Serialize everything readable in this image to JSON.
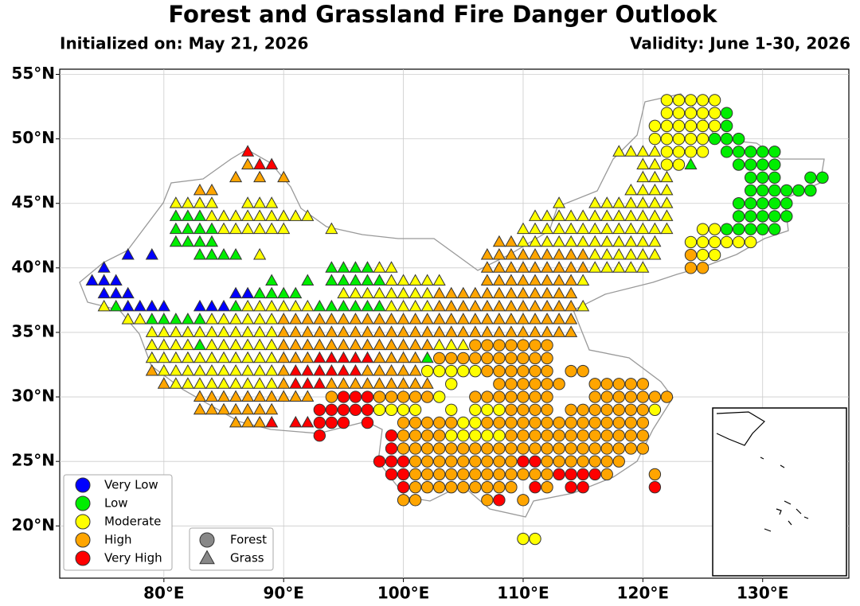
{
  "chart_data": {
    "type": "map-markers",
    "title": "Forest and Grassland Fire Danger Outlook",
    "initialized": "Initialized on: May 21, 2026",
    "validity": "Validity: June 1-30, 2026",
    "xlim": [
      71.3,
      137.2
    ],
    "ylim": [
      15.95,
      55.4
    ],
    "grid": true,
    "xticks": [
      {
        "value": 80,
        "label": "80°E"
      },
      {
        "value": 90,
        "label": "90°E"
      },
      {
        "value": 100,
        "label": "100°E"
      },
      {
        "value": 110,
        "label": "110°E"
      },
      {
        "value": 120,
        "label": "120°E"
      },
      {
        "value": 130,
        "label": "130°E"
      }
    ],
    "yticks": [
      {
        "value": 20,
        "label": "20°N"
      },
      {
        "value": 25,
        "label": "25°N"
      },
      {
        "value": 30,
        "label": "30°N"
      },
      {
        "value": 35,
        "label": "35°N"
      },
      {
        "value": 40,
        "label": "40°N"
      },
      {
        "value": 45,
        "label": "45°N"
      },
      {
        "value": 50,
        "label": "50°N"
      },
      {
        "value": 55,
        "label": "55°N"
      }
    ],
    "levels": [
      {
        "name": "Very Low",
        "color": "#0000ff"
      },
      {
        "name": "Low",
        "color": "#00ee00"
      },
      {
        "name": "Moderate",
        "color": "#ffff00"
      },
      {
        "name": "High",
        "color": "#ffa500"
      },
      {
        "name": "Very High",
        "color": "#ff0000"
      }
    ],
    "shapes": [
      {
        "name": "Forest",
        "marker": "circle"
      },
      {
        "name": "Grass",
        "marker": "triangle"
      }
    ],
    "rows": [
      {
        "lat": 53,
        "runs": [
          [
            122,
            126,
            2,
            0
          ]
        ]
      },
      {
        "lat": 52,
        "runs": [
          [
            122,
            126,
            2,
            0
          ],
          [
            127,
            127,
            1,
            0
          ]
        ]
      },
      {
        "lat": 51,
        "runs": [
          [
            121,
            126,
            2,
            0
          ],
          [
            127,
            127,
            1,
            0
          ]
        ]
      },
      {
        "lat": 50,
        "runs": [
          [
            121,
            125,
            2,
            0
          ],
          [
            126,
            128,
            1,
            0
          ]
        ]
      },
      {
        "lat": 49,
        "runs": [
          [
            87,
            87,
            4,
            1
          ],
          [
            118,
            121,
            2,
            1
          ],
          [
            122,
            125,
            2,
            0
          ],
          [
            127,
            131,
            1,
            0
          ]
        ]
      },
      {
        "lat": 48,
        "runs": [
          [
            87,
            87,
            3,
            1
          ],
          [
            88,
            89,
            4,
            1
          ],
          [
            120,
            121,
            2,
            1
          ],
          [
            122,
            123,
            2,
            0
          ],
          [
            124,
            124,
            1,
            1
          ],
          [
            128,
            131,
            1,
            0
          ]
        ]
      },
      {
        "lat": 47,
        "runs": [
          [
            86,
            86,
            3,
            1
          ],
          [
            88,
            88,
            3,
            1
          ],
          [
            90,
            90,
            3,
            1
          ],
          [
            120,
            122,
            2,
            1
          ],
          [
            129,
            131,
            1,
            0
          ],
          [
            134,
            135,
            1,
            0
          ]
        ]
      },
      {
        "lat": 46,
        "runs": [
          [
            83,
            84,
            3,
            1
          ],
          [
            119,
            122,
            2,
            1
          ],
          [
            129,
            134,
            1,
            0
          ]
        ]
      },
      {
        "lat": 45,
        "runs": [
          [
            81,
            84,
            2,
            1
          ],
          [
            87,
            89,
            2,
            1
          ],
          [
            113,
            113,
            2,
            1
          ],
          [
            116,
            122,
            2,
            1
          ],
          [
            128,
            132,
            1,
            0
          ]
        ]
      },
      {
        "lat": 44,
        "runs": [
          [
            81,
            83,
            1,
            1
          ],
          [
            84,
            92,
            2,
            1
          ],
          [
            111,
            122,
            2,
            1
          ],
          [
            128,
            132,
            1,
            0
          ]
        ]
      },
      {
        "lat": 43,
        "runs": [
          [
            81,
            84,
            1,
            1
          ],
          [
            85,
            90,
            2,
            1
          ],
          [
            94,
            94,
            2,
            1
          ],
          [
            110,
            122,
            2,
            1
          ],
          [
            125,
            126,
            2,
            0
          ],
          [
            127,
            131,
            1,
            0
          ]
        ]
      },
      {
        "lat": 42,
        "runs": [
          [
            81,
            84,
            1,
            1
          ],
          [
            108,
            109,
            3,
            1
          ],
          [
            110,
            121,
            2,
            1
          ],
          [
            124,
            129,
            2,
            0
          ]
        ]
      },
      {
        "lat": 41,
        "runs": [
          [
            77,
            77,
            0,
            1
          ],
          [
            79,
            79,
            0,
            1
          ],
          [
            83,
            86,
            1,
            1
          ],
          [
            88,
            88,
            2,
            1
          ],
          [
            107,
            115,
            3,
            1
          ],
          [
            116,
            121,
            2,
            1
          ],
          [
            124,
            124,
            3,
            0
          ],
          [
            125,
            126,
            2,
            0
          ]
        ]
      },
      {
        "lat": 40,
        "runs": [
          [
            75,
            75,
            0,
            1
          ],
          [
            94,
            97,
            1,
            1
          ],
          [
            98,
            99,
            2,
            1
          ],
          [
            107,
            115,
            3,
            1
          ],
          [
            116,
            120,
            2,
            1
          ],
          [
            124,
            125,
            3,
            0
          ]
        ]
      },
      {
        "lat": 39,
        "runs": [
          [
            74,
            76,
            0,
            1
          ],
          [
            89,
            89,
            1,
            1
          ],
          [
            92,
            92,
            1,
            1
          ],
          [
            94,
            98,
            1,
            1
          ],
          [
            99,
            103,
            2,
            1
          ],
          [
            107,
            114,
            3,
            1
          ],
          [
            115,
            115,
            2,
            1
          ]
        ]
      },
      {
        "lat": 38,
        "runs": [
          [
            75,
            77,
            0,
            1
          ],
          [
            86,
            87,
            0,
            1
          ],
          [
            88,
            91,
            1,
            1
          ],
          [
            95,
            102,
            2,
            1
          ],
          [
            103,
            114,
            3,
            1
          ]
        ]
      },
      {
        "lat": 37,
        "runs": [
          [
            75,
            75,
            2,
            1
          ],
          [
            76,
            76,
            1,
            1
          ],
          [
            77,
            80,
            0,
            1
          ],
          [
            83,
            85,
            0,
            1
          ],
          [
            86,
            86,
            1,
            1
          ],
          [
            87,
            92,
            2,
            1
          ],
          [
            93,
            98,
            1,
            1
          ],
          [
            99,
            102,
            2,
            1
          ],
          [
            103,
            114,
            3,
            1
          ],
          [
            115,
            115,
            2,
            1
          ]
        ]
      },
      {
        "lat": 36,
        "runs": [
          [
            77,
            78,
            2,
            1
          ],
          [
            79,
            83,
            1,
            1
          ],
          [
            84,
            89,
            2,
            1
          ],
          [
            90,
            114,
            3,
            1
          ]
        ]
      },
      {
        "lat": 35,
        "runs": [
          [
            79,
            89,
            2,
            1
          ],
          [
            90,
            114,
            3,
            1
          ]
        ]
      },
      {
        "lat": 34,
        "runs": [
          [
            79,
            82,
            2,
            1
          ],
          [
            83,
            83,
            1,
            1
          ],
          [
            84,
            89,
            2,
            1
          ],
          [
            90,
            102,
            3,
            1
          ],
          [
            103,
            105,
            2,
            1
          ],
          [
            106,
            112,
            3,
            0
          ]
        ]
      },
      {
        "lat": 33,
        "runs": [
          [
            79,
            89,
            2,
            1
          ],
          [
            90,
            92,
            3,
            1
          ],
          [
            93,
            97,
            4,
            1
          ],
          [
            98,
            101,
            3,
            1
          ],
          [
            102,
            102,
            1,
            1
          ],
          [
            103,
            112,
            3,
            0
          ]
        ]
      },
      {
        "lat": 32,
        "runs": [
          [
            79,
            79,
            3,
            1
          ],
          [
            80,
            89,
            2,
            1
          ],
          [
            90,
            90,
            3,
            1
          ],
          [
            91,
            96,
            4,
            1
          ],
          [
            97,
            101,
            3,
            1
          ],
          [
            102,
            106,
            2,
            0
          ],
          [
            107,
            112,
            3,
            0
          ],
          [
            114,
            115,
            3,
            0
          ]
        ]
      },
      {
        "lat": 31,
        "runs": [
          [
            80,
            80,
            3,
            1
          ],
          [
            81,
            89,
            2,
            1
          ],
          [
            90,
            90,
            3,
            1
          ],
          [
            91,
            93,
            4,
            1
          ],
          [
            94,
            102,
            3,
            1
          ],
          [
            104,
            104,
            2,
            0
          ],
          [
            108,
            113,
            3,
            0
          ],
          [
            116,
            120,
            3,
            0
          ]
        ]
      },
      {
        "lat": 30,
        "runs": [
          [
            83,
            92,
            3,
            1
          ],
          [
            94,
            94,
            3,
            0
          ],
          [
            95,
            97,
            4,
            0
          ],
          [
            98,
            102,
            3,
            0
          ],
          [
            103,
            103,
            2,
            0
          ],
          [
            106,
            112,
            3,
            0
          ],
          [
            116,
            122,
            3,
            0
          ]
        ]
      },
      {
        "lat": 29,
        "runs": [
          [
            83,
            89,
            3,
            1
          ],
          [
            93,
            97,
            4,
            0
          ],
          [
            98,
            101,
            2,
            0
          ],
          [
            104,
            104,
            2,
            0
          ],
          [
            106,
            108,
            2,
            0
          ],
          [
            109,
            112,
            3,
            0
          ],
          [
            114,
            120,
            3,
            0
          ],
          [
            121,
            121,
            2,
            0
          ]
        ]
      },
      {
        "lat": 28,
        "runs": [
          [
            86,
            88,
            3,
            1
          ],
          [
            89,
            89,
            4,
            1
          ],
          [
            91,
            92,
            4,
            1
          ],
          [
            93,
            95,
            4,
            0
          ],
          [
            97,
            97,
            4,
            0
          ],
          [
            100,
            104,
            3,
            0
          ],
          [
            105,
            106,
            2,
            0
          ],
          [
            107,
            120,
            3,
            0
          ]
        ]
      },
      {
        "lat": 27,
        "runs": [
          [
            93,
            93,
            4,
            0
          ],
          [
            99,
            99,
            4,
            0
          ],
          [
            100,
            103,
            3,
            0
          ],
          [
            104,
            108,
            2,
            0
          ],
          [
            109,
            120,
            3,
            0
          ]
        ]
      },
      {
        "lat": 26,
        "runs": [
          [
            99,
            99,
            4,
            0
          ],
          [
            100,
            120,
            3,
            0
          ]
        ]
      },
      {
        "lat": 25,
        "runs": [
          [
            98,
            100,
            4,
            0
          ],
          [
            101,
            109,
            3,
            0
          ],
          [
            110,
            111,
            4,
            0
          ],
          [
            112,
            118,
            3,
            0
          ]
        ]
      },
      {
        "lat": 24,
        "runs": [
          [
            99,
            100,
            4,
            0
          ],
          [
            101,
            112,
            3,
            0
          ],
          [
            113,
            116,
            4,
            0
          ],
          [
            117,
            117,
            3,
            0
          ],
          [
            121,
            121,
            3,
            0
          ]
        ]
      },
      {
        "lat": 23,
        "runs": [
          [
            100,
            100,
            4,
            0
          ],
          [
            101,
            109,
            3,
            0
          ],
          [
            111,
            111,
            4,
            0
          ],
          [
            112,
            112,
            3,
            0
          ],
          [
            114,
            115,
            4,
            0
          ],
          [
            121,
            121,
            4,
            0
          ]
        ]
      },
      {
        "lat": 22,
        "runs": [
          [
            100,
            101,
            3,
            0
          ],
          [
            107,
            107,
            3,
            0
          ],
          [
            108,
            108,
            4,
            0
          ],
          [
            110,
            110,
            3,
            0
          ]
        ]
      },
      {
        "lat": 19,
        "runs": [
          [
            110,
            111,
            2,
            0
          ]
        ]
      }
    ]
  }
}
